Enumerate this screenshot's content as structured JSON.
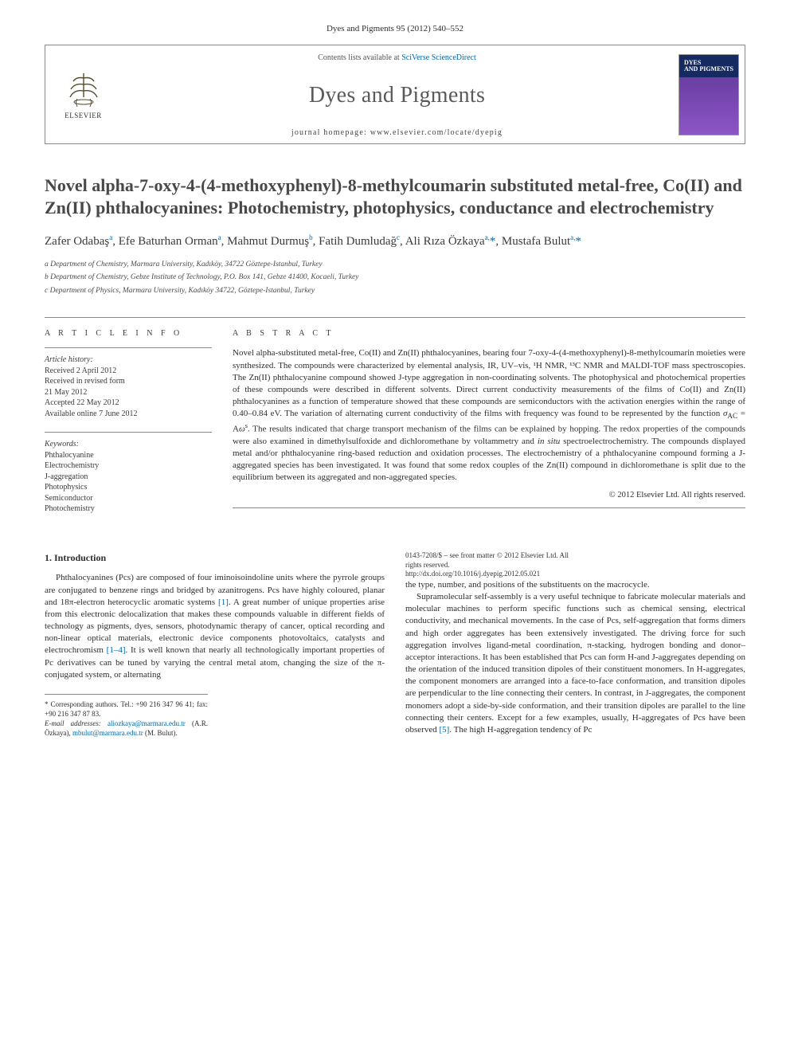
{
  "journal_ref": "Dyes and Pigments 95 (2012) 540–552",
  "header": {
    "contents_prefix": "Contents lists available at ",
    "contents_link": "SciVerse ScienceDirect",
    "journal_name": "Dyes and Pigments",
    "homepage_prefix": "journal homepage: ",
    "homepage_url": "www.elsevier.com/locate/dyepig",
    "publisher_label": "ELSEVIER",
    "cover_label_1": "DYES",
    "cover_label_2": "AND PIGMENTS"
  },
  "title": "Novel alpha-7-oxy-4-(4-methoxyphenyl)-8-methylcoumarin substituted metal-free, Co(II) and Zn(II) phthalocyanines: Photochemistry, photophysics, conductance and electrochemistry",
  "authors_html": "Zafer Odabaş<sup>a</sup>, Efe Baturhan Orman<sup>a</sup>, Mahmut Durmuş<sup>b</sup>, Fatih Dumludağ<sup>c</sup>, Ali Rıza Özkaya<sup>a,</sup><span class='star'>*</span>, Mustafa Bulut<sup>a,</sup><span class='star'>*</span>",
  "affiliations": {
    "a": "a Department of Chemistry, Marmara University, Kadıköy, 34722 Göztepe-Istanbul, Turkey",
    "b": "b Department of Chemistry, Gebze Institute of Technology, P.O. Box 141, Gebze 41400, Kocaeli, Turkey",
    "c": "c Department of Physics, Marmara University, Kadıköy 34722, Göztepe-Istanbul, Turkey"
  },
  "article_info": {
    "label": "A R T I C L E   I N F O",
    "history_title": "Article history:",
    "received": "Received 2 April 2012",
    "revised1": "Received in revised form",
    "revised2": "21 May 2012",
    "accepted": "Accepted 22 May 2012",
    "online": "Available online 7 June 2012",
    "keywords_title": "Keywords:",
    "keywords": [
      "Phthalocyanine",
      "Electrochemistry",
      "J-aggregation",
      "Photophysics",
      "Semiconductor",
      "Photochemistry"
    ]
  },
  "abstract": {
    "label": "A B S T R A C T",
    "text": "Novel alpha-substituted metal-free, Co(II) and Zn(II) phthalocyanines, bearing four 7-oxy-4-(4-methoxyphenyl)-8-methylcoumarin moieties were synthesized. The compounds were characterized by elemental analysis, IR, UV–vis, ¹H NMR, ¹³C NMR and MALDI-TOF mass spectroscopies. The Zn(II) phthalocyanine compound showed J-type aggregation in non-coordinating solvents. The photophysical and photochemical properties of these compounds were described in different solvents. Direct current conductivity measurements of the films of Co(II) and Zn(II) phthalocyanines as a function of temperature showed that these compounds are semiconductors with the activation energies within the range of 0.40–0.84 eV. The variation of alternating current conductivity of the films with frequency was found to be represented by the function σAC = Aωˢ. The results indicated that charge transport mechanism of the films can be explained by hopping. The redox properties of the compounds were also examined in dimethylsulfoxide and dichloromethane by voltammetry and in situ spectroelectrochemistry. The compounds displayed metal and/or phthalocyanine ring-based reduction and oxidation processes. The electrochemistry of a phthalocyanine compound forming a J-aggregated species has been investigated. It was found that some redox couples of the Zn(II) compound in dichloromethane is split due to the equilibrium between its aggregated and non-aggregated species.",
    "copyright": "© 2012 Elsevier Ltd. All rights reserved."
  },
  "body": {
    "section_number": "1.",
    "section_title": "Introduction",
    "para1": "Phthalocyanines (Pcs) are composed of four iminoisoindoline units where the pyrrole groups are conjugated to benzene rings and bridged by azanitrogens. Pcs have highly coloured, planar and 18π-electron heterocyclic aromatic systems [1]. A great number of unique properties arise from this electronic delocalization that makes these compounds valuable in different fields of technology as pigments, dyes, sensors, photodynamic therapy of cancer, optical recording and non-linear optical materials, electronic device components photovoltaics, catalysts and electrochromism [1–4]. It is well known that nearly all technologically important properties of Pc derivatives can be tuned by varying the central metal atom, changing the size of the π-conjugated system, or alternating",
    "para2_cont": "the type, number, and positions of the substituents on the macrocycle.",
    "para3": "Supramolecular self-assembly is a very useful technique to fabricate molecular materials and molecular machines to perform specific functions such as chemical sensing, electrical conductivity, and mechanical movements. In the case of Pcs, self-aggregation that forms dimers and high order aggregates has been extensively investigated. The driving force for such aggregation involves ligand-metal coordination, π-stacking, hydrogen bonding and donor–acceptor interactions. It has been established that Pcs can form H-and J-aggregates depending on the orientation of the induced transition dipoles of their constituent monomers. In H-aggregates, the component monomers are arranged into a face-to-face conformation, and transition dipoles are perpendicular to the line connecting their centers. In contrast, in J-aggregates, the component monomers adopt a side-by-side conformation, and their transition dipoles are parallel to the line connecting their centers. Except for a few examples, usually, H-aggregates of Pcs have been observed [5]. The high H-aggregation tendency of Pc"
  },
  "footnotes": {
    "corr": "* Corresponding authors. Tel.: +90 216 347 96 41; fax: +90 216 347 87 83.",
    "email_label": "E-mail addresses:",
    "email1": "aliozkaya@marmara.edu.tr",
    "email1_who": "(A.R. Özkaya),",
    "email2": "mbulut@marmara.edu.tr",
    "email2_who": "(M. Bulut)."
  },
  "bottom": {
    "line1": "0143-7208/$ – see front matter © 2012 Elsevier Ltd. All rights reserved.",
    "line2": "http://dx.doi.org/10.1016/j.dyepig.2012.05.021"
  },
  "colors": {
    "link": "#0066aa",
    "rule": "#888888",
    "text": "#2e2e2e",
    "title_grey": "#484848"
  }
}
